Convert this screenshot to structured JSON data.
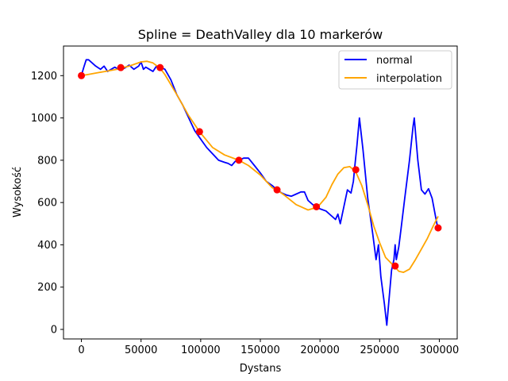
{
  "chart_data": {
    "type": "line",
    "title": "Spline = DeathValley dla 10 markerów",
    "xlabel": "Dystans",
    "ylabel": "Wysokość",
    "xlim": [
      -15000,
      315000
    ],
    "ylim": [
      -45,
      1340
    ],
    "xticks": [
      0,
      50000,
      100000,
      150000,
      200000,
      250000,
      300000
    ],
    "yticks": [
      0,
      200,
      400,
      600,
      800,
      1000,
      1200
    ],
    "grid": false,
    "legend_position": "top-right",
    "series": [
      {
        "name": "normal",
        "color": "#0000ff",
        "x": [
          0,
          2000,
          4000,
          6000,
          9000,
          12000,
          16000,
          19000,
          22000,
          25000,
          28000,
          31000,
          33000,
          36000,
          40000,
          44000,
          48000,
          50000,
          52000,
          54000,
          57000,
          60000,
          63000,
          66000,
          70000,
          75000,
          80000,
          85000,
          90000,
          95000,
          100000,
          105000,
          110000,
          115000,
          120000,
          123000,
          126000,
          129000,
          132000,
          136000,
          140000,
          145000,
          150000,
          155000,
          160000,
          164000,
          168000,
          172000,
          176000,
          180000,
          184000,
          187000,
          190000,
          193000,
          196000,
          200000,
          205000,
          210000,
          213000,
          215000,
          217000,
          220000,
          223000,
          226000,
          228000,
          229000,
          231000,
          233000,
          236000,
          240000,
          244000,
          247000,
          249000,
          251000,
          254000,
          256000,
          258000,
          260000,
          262000,
          263000,
          264000,
          266000,
          268000,
          271000,
          275000,
          278000,
          279000,
          282000,
          285000,
          288000,
          291000,
          294000,
          296000,
          298000,
          299000
        ],
        "y": [
          1200,
          1240,
          1275,
          1275,
          1260,
          1245,
          1230,
          1245,
          1220,
          1230,
          1240,
          1230,
          1240,
          1235,
          1250,
          1230,
          1245,
          1265,
          1230,
          1240,
          1230,
          1220,
          1245,
          1240,
          1230,
          1180,
          1110,
          1060,
          1000,
          940,
          900,
          860,
          830,
          800,
          790,
          785,
          775,
          795,
          800,
          810,
          810,
          775,
          740,
          700,
          680,
          660,
          645,
          635,
          630,
          640,
          650,
          650,
          610,
          595,
          580,
          570,
          560,
          535,
          520,
          545,
          500,
          580,
          660,
          645,
          700,
          760,
          870,
          1000,
          850,
          620,
          460,
          330,
          400,
          250,
          120,
          20,
          150,
          280,
          330,
          400,
          330,
          390,
          480,
          620,
          800,
          960,
          1000,
          800,
          660,
          640,
          665,
          620,
          560,
          500,
          480
        ]
      },
      {
        "name": "interpolation",
        "color": "#ffa500",
        "x": [
          0,
          5000,
          10000,
          15000,
          20000,
          25000,
          30000,
          33000,
          40000,
          45000,
          50000,
          55000,
          60000,
          66000,
          70000,
          80000,
          90000,
          99000,
          110000,
          120000,
          132000,
          140000,
          150000,
          155000,
          160000,
          165000,
          170000,
          180000,
          190000,
          198000,
          205000,
          210000,
          215000,
          220000,
          225000,
          230000,
          235000,
          240000,
          245000,
          250000,
          255000,
          262000,
          266000,
          270000,
          275000,
          280000,
          285000,
          290000,
          295000,
          299000
        ],
        "y": [
          1200,
          1205,
          1210,
          1215,
          1220,
          1225,
          1230,
          1235,
          1245,
          1255,
          1265,
          1268,
          1260,
          1235,
          1205,
          1110,
          1010,
          935,
          860,
          825,
          800,
          775,
          730,
          700,
          670,
          655,
          635,
          590,
          565,
          578,
          625,
          685,
          735,
          765,
          770,
          745,
          680,
          590,
          490,
          410,
          340,
          300,
          275,
          270,
          285,
          330,
          380,
          430,
          490,
          535
        ]
      },
      {
        "name": "markers",
        "color": "#ff0000",
        "x": [
          0,
          33000,
          66000,
          99000,
          132000,
          164000,
          197000,
          230000,
          263000,
          299000
        ],
        "y": [
          1200,
          1238,
          1238,
          935,
          800,
          660,
          580,
          755,
          300,
          480
        ]
      }
    ]
  }
}
